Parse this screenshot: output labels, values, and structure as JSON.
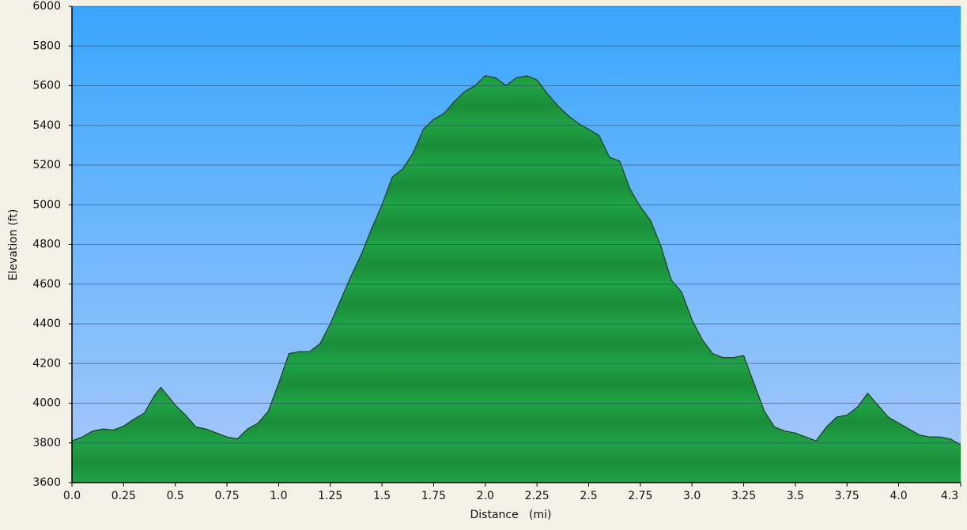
{
  "chart_data": {
    "type": "area",
    "x_label": "Distance   (mi)",
    "y_label": "Elevation (ft)",
    "x": [
      0.0,
      0.05,
      0.1,
      0.15,
      0.2,
      0.25,
      0.3,
      0.35,
      0.4,
      0.43,
      0.47,
      0.5,
      0.55,
      0.6,
      0.65,
      0.7,
      0.75,
      0.8,
      0.85,
      0.9,
      0.95,
      1.0,
      1.05,
      1.1,
      1.15,
      1.2,
      1.25,
      1.3,
      1.35,
      1.4,
      1.45,
      1.5,
      1.55,
      1.6,
      1.65,
      1.7,
      1.75,
      1.8,
      1.85,
      1.9,
      1.95,
      2.0,
      2.05,
      2.1,
      2.15,
      2.2,
      2.25,
      2.3,
      2.35,
      2.4,
      2.45,
      2.5,
      2.55,
      2.6,
      2.65,
      2.7,
      2.75,
      2.8,
      2.85,
      2.9,
      2.95,
      3.0,
      3.05,
      3.1,
      3.15,
      3.2,
      3.25,
      3.3,
      3.35,
      3.4,
      3.45,
      3.5,
      3.55,
      3.6,
      3.65,
      3.7,
      3.75,
      3.8,
      3.85,
      3.9,
      3.95,
      4.0,
      4.05,
      4.1,
      4.15,
      4.2,
      4.25,
      4.3
    ],
    "values": [
      3810,
      3830,
      3860,
      3870,
      3865,
      3885,
      3920,
      3950,
      4040,
      4080,
      4030,
      3990,
      3940,
      3880,
      3870,
      3850,
      3830,
      3820,
      3870,
      3900,
      3960,
      4100,
      4250,
      4260,
      4260,
      4300,
      4400,
      4520,
      4640,
      4750,
      4880,
      5000,
      5140,
      5180,
      5260,
      5380,
      5430,
      5460,
      5520,
      5570,
      5600,
      5650,
      5640,
      5600,
      5640,
      5650,
      5630,
      5560,
      5500,
      5450,
      5410,
      5380,
      5350,
      5240,
      5220,
      5080,
      4990,
      4920,
      4790,
      4620,
      4560,
      4420,
      4320,
      4250,
      4230,
      4230,
      4240,
      4100,
      3960,
      3880,
      3860,
      3850,
      3830,
      3810,
      3880,
      3930,
      3940,
      3980,
      4050,
      3990,
      3930,
      3900,
      3870,
      3840,
      3830,
      3830,
      3820,
      3790
    ],
    "color": "#1fa345",
    "xlim": [
      0,
      4.3
    ],
    "xticks": [
      {
        "value": 0,
        "label": "0.0"
      },
      0.25,
      0.5,
      0.75,
      {
        "value": 1,
        "label": "1.0"
      },
      1.25,
      1.5,
      1.75,
      {
        "value": 2,
        "label": "2.0"
      },
      2.25,
      2.5,
      2.75,
      {
        "value": 3,
        "label": "3.0"
      },
      3.25,
      3.5,
      3.75,
      {
        "value": 4,
        "label": "4.0"
      },
      4.3
    ],
    "ylim": [
      3600,
      6000
    ],
    "yticks": [
      3600,
      3800,
      4000,
      4200,
      4400,
      4600,
      4800,
      5000,
      5200,
      5400,
      5600,
      5800,
      6000
    ],
    "grid": true
  }
}
